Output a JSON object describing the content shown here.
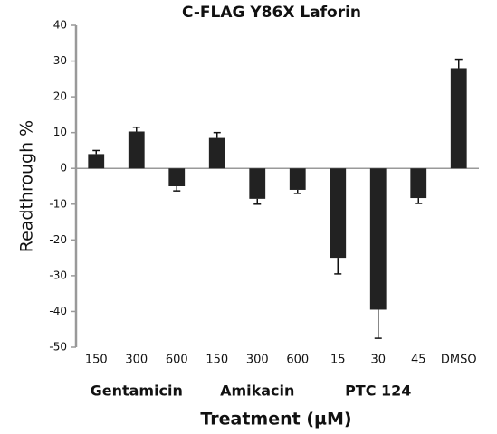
{
  "chart_data": {
    "type": "bar",
    "title": "C-FLAG Y86X Laforin",
    "y_label": "Readthrough %",
    "x_label": "Treatment (µM)",
    "categories": [
      "150",
      "300",
      "600",
      "150",
      "300",
      "600",
      "15",
      "30",
      "45",
      "DMSO"
    ],
    "groups": [
      "Gentamicin",
      "Amikacin",
      "PTC 124"
    ],
    "values": [
      4,
      10.3,
      -5,
      8.5,
      -8.5,
      -6,
      -25,
      -39.5,
      -8.3,
      28
    ],
    "errors": [
      1,
      1.2,
      1.3,
      1.5,
      1.5,
      1,
      4.5,
      8,
      1.5,
      2.5
    ],
    "color": "#222222",
    "ylim": [
      -50,
      40
    ],
    "yticks": [
      -50,
      -40,
      -30,
      -20,
      -10,
      0,
      10,
      20,
      30,
      40
    ],
    "grid": false
  }
}
